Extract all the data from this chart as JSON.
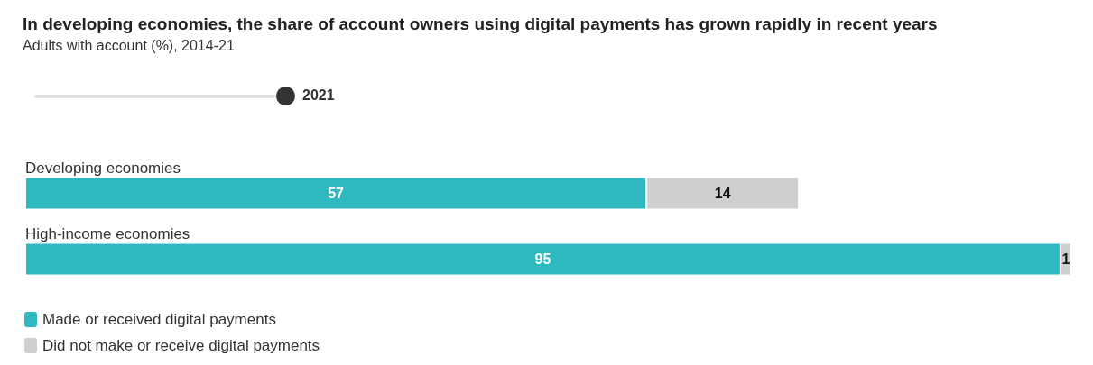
{
  "chart_data": {
    "type": "bar",
    "orientation": "horizontal",
    "stacked": true,
    "title": "In developing economies, the share of account owners using digital payments has grown rapidly in recent years",
    "subtitle": "Adults with account (%), 2014-21",
    "annotations": [
      "2021"
    ],
    "categories": [
      "Developing economies",
      "High-income economies"
    ],
    "series": [
      {
        "name": "Made or received digital payments",
        "color": "#2eb8c0",
        "values": [
          57,
          95
        ]
      },
      {
        "name": "Did not make or receive digital payments",
        "color": "#cfcfcf",
        "values": [
          14,
          1
        ]
      }
    ],
    "data_labels": true,
    "legend": "bottom left"
  }
}
